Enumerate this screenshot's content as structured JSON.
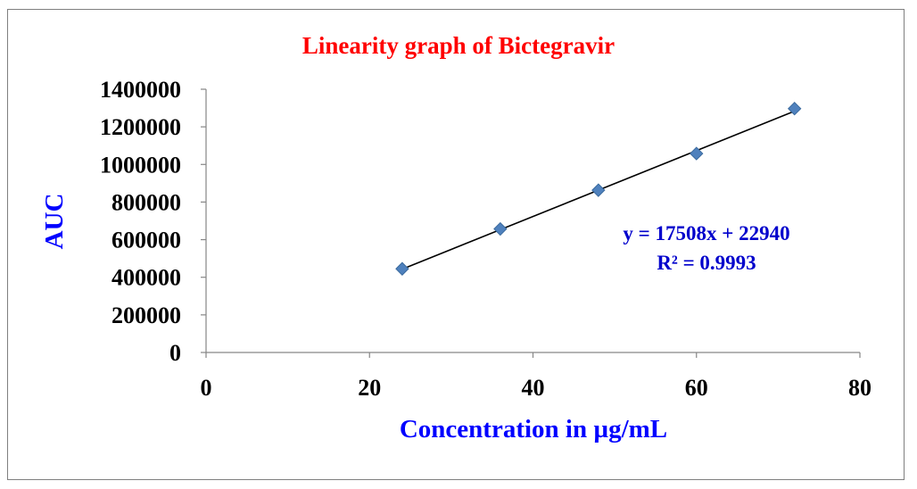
{
  "chart_data": {
    "type": "scatter",
    "title": "Linearity graph of Bictegravir",
    "xlabel": "Concentration in µg/mL",
    "ylabel": "AUC",
    "xlim": [
      0,
      80
    ],
    "ylim": [
      0,
      1400000
    ],
    "x_ticks": [
      "0",
      "20",
      "40",
      "60",
      "80"
    ],
    "y_ticks": [
      "0",
      "200000",
      "400000",
      "600000",
      "800000",
      "1000000",
      "1200000",
      "1400000"
    ],
    "series": [
      {
        "x": [
          24,
          36,
          48,
          60,
          72
        ],
        "y": [
          445000,
          657000,
          863000,
          1058000,
          1297000
        ]
      }
    ],
    "trendline": {
      "slope": 17508,
      "intercept": 22940,
      "x_range": [
        24,
        72
      ],
      "equation": "y = 17508x + 22940",
      "r_squared": "R² = 0.9993"
    },
    "grid": false,
    "legend": "none",
    "colors": {
      "title": "#ff0000",
      "axis_label": "#0000ff",
      "equation": "#0000cc",
      "marker": "#4f81bd",
      "marker_stroke": "#3a6a9e",
      "trendline": "#000000"
    }
  }
}
